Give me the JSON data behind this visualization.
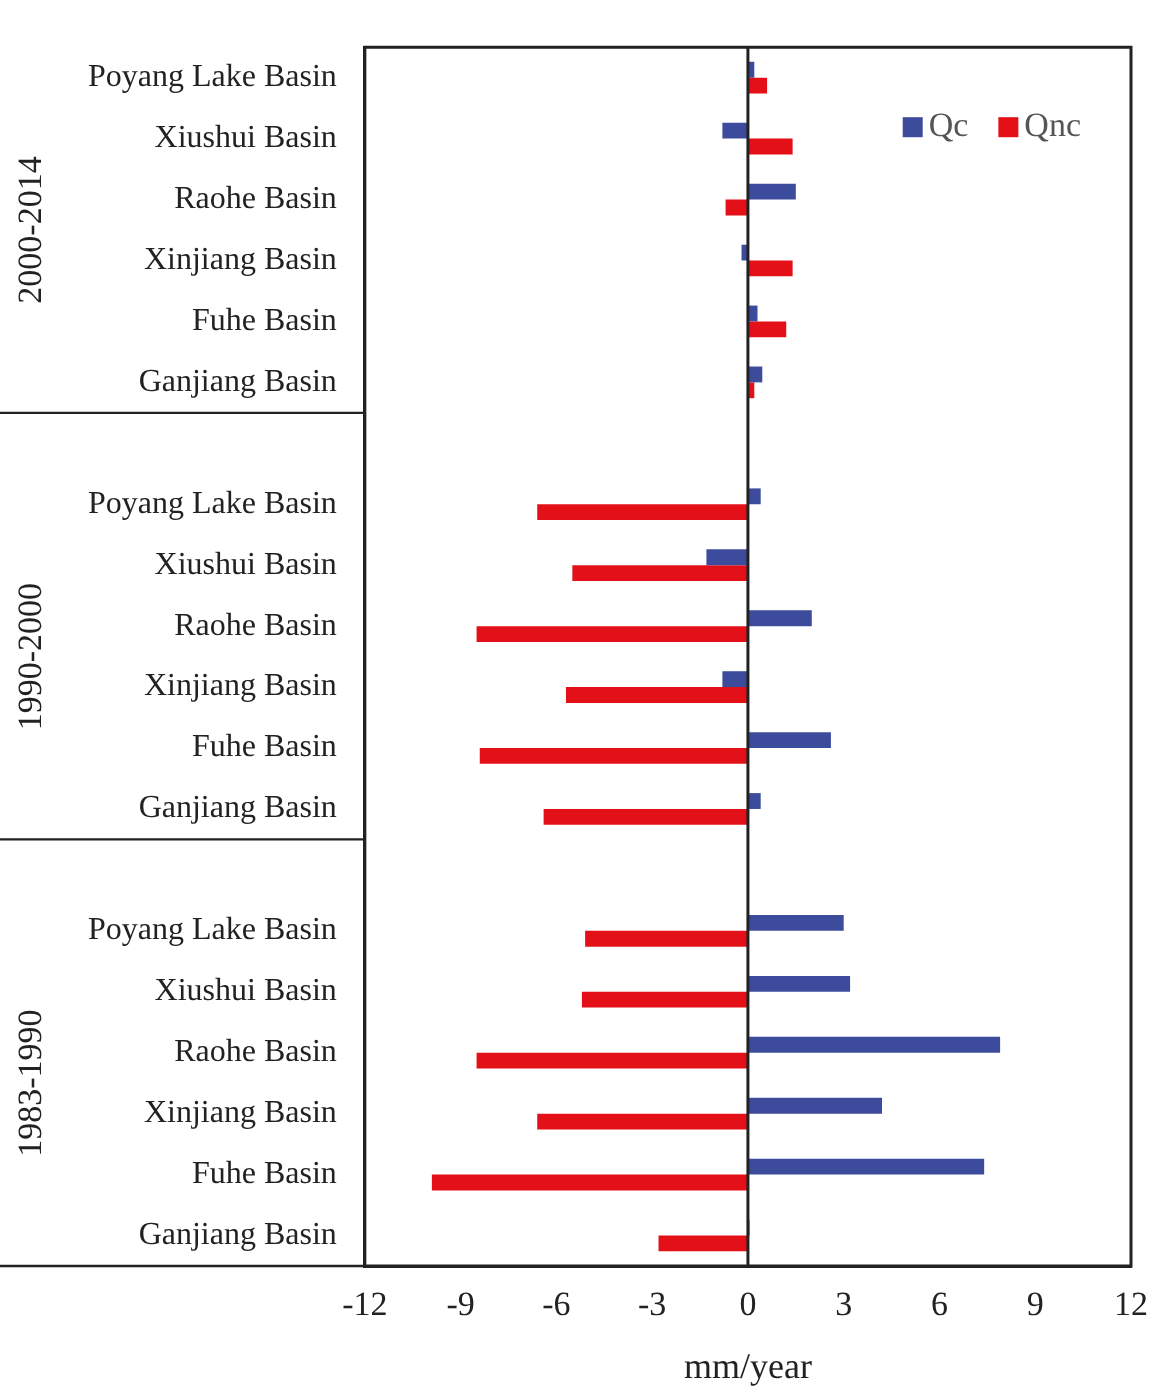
{
  "chart_data": {
    "type": "bar",
    "orientation": "horizontal",
    "xlabel": "mm/year",
    "categories": [
      "Poyang Lake Basin",
      "Xiushui Basin",
      "Raohe Basin",
      "Xinjiang Basin",
      "Fuhe Basin",
      "Ganjiang Basin",
      null,
      "Poyang Lake Basin",
      "Xiushui Basin",
      "Raohe Basin",
      "Xinjiang Basin",
      "Fuhe Basin",
      "Ganjiang Basin",
      null,
      "Poyang Lake Basin",
      "Xiushui Basin",
      "Raohe Basin",
      "Xinjiang Basin",
      "Fuhe Basin",
      "Ganjiang Basin"
    ],
    "series": [
      {
        "name": "Qc",
        "color": "#3c4b9b",
        "values": [
          0.2,
          -0.8,
          1.5,
          -0.2,
          0.3,
          0.45,
          null,
          0.4,
          -1.3,
          2.0,
          -0.8,
          2.6,
          0.4,
          null,
          3.0,
          3.2,
          7.9,
          4.2,
          7.4,
          0.05
        ]
      },
      {
        "name": "Qnc",
        "color": "#e31018",
        "values": [
          0.6,
          1.4,
          -0.7,
          1.4,
          1.2,
          0.2,
          null,
          -6.6,
          -5.5,
          -8.5,
          -5.7,
          -8.4,
          -6.4,
          null,
          -5.1,
          -5.2,
          -8.5,
          -6.6,
          -9.9,
          -2.8
        ]
      }
    ],
    "xlim": [
      -12,
      12
    ],
    "xticks": [
      -12,
      -9,
      -6,
      -3,
      0,
      3,
      6,
      9,
      12
    ],
    "annotations": [
      "2000-2014",
      "1990-2000",
      "1983-1990"
    ],
    "legend": "top right"
  }
}
